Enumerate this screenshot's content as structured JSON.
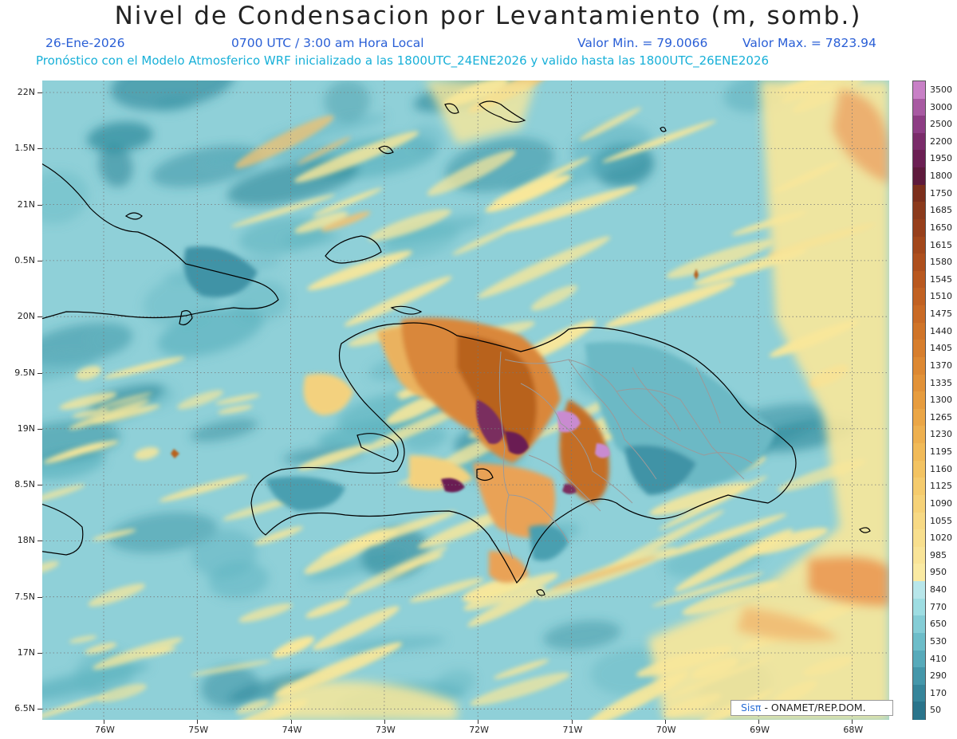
{
  "header": {
    "title": "Nivel de Condensacion por Levantamiento (m, somb.)",
    "date": "26-Ene-2026",
    "time": "0700 UTC / 3:00 am Hora Local",
    "min_label": "Valor Min. = 79.0066",
    "max_label": "Valor Max. = 7823.94",
    "forecast_line": "Pronóstico con el Modelo Atmosferico WRF inicializado a las 1800UTC_24ENE2026 y valido hasta las  1800UTC_26ENE2026"
  },
  "map": {
    "lat_labels": [
      "22N",
      "1.5N",
      "21N",
      "0.5N",
      "20N",
      "9.5N",
      "19N",
      "8.5N",
      "18N",
      "7.5N",
      "17N",
      "6.5N"
    ],
    "lon_labels": [
      "76W",
      "75W",
      "74W",
      "73W",
      "72W",
      "71W",
      "70W",
      "69W",
      "68W"
    ],
    "colors": {
      "ocean_base": "#8fd0d8",
      "low_teal": "#5fb3c0",
      "deep_teal": "#2f8a9c",
      "yellow": "#f8e79a",
      "orange": "#e9a257",
      "brown": "#b8621f",
      "purple": "#7a2f5e",
      "lilac": "#c98bd0",
      "coastline": "#000000",
      "borders": "#9a9a9a"
    }
  },
  "colorbar": {
    "labels": [
      "3500",
      "3000",
      "2500",
      "2200",
      "1950",
      "1800",
      "1750",
      "1685",
      "1650",
      "1615",
      "1580",
      "1545",
      "1510",
      "1475",
      "1440",
      "1405",
      "1370",
      "1335",
      "1300",
      "1265",
      "1230",
      "1195",
      "1160",
      "1125",
      "1090",
      "1055",
      "1020",
      "985",
      "950",
      "840",
      "770",
      "650",
      "530",
      "410",
      "290",
      "170",
      "50"
    ],
    "colors": [
      "#c880c6",
      "#a85aa2",
      "#8d3d84",
      "#7a2c6a",
      "#6b1f53",
      "#5e1a3c",
      "#7c2f1c",
      "#8b3a1c",
      "#973f1b",
      "#a3471b",
      "#ae4f1d",
      "#b9581f",
      "#c16122",
      "#c96a25",
      "#d07428",
      "#d77e2d",
      "#dd8832",
      "#e29238",
      "#e79c3e",
      "#eba646",
      "#eeb04f",
      "#f1ba58",
      "#f3c362",
      "#f5cb6d",
      "#f6d278",
      "#f7d984",
      "#f8df8e",
      "#f9e498",
      "#faeaa3",
      "#b8e6ea",
      "#9edde2",
      "#85cdd6",
      "#6dbdc9",
      "#57aaba",
      "#4597aa",
      "#36859a",
      "#2a748b"
    ]
  },
  "logo": {
    "sis": "Sisπ",
    "text": "- ONAMET/REP.DOM."
  }
}
